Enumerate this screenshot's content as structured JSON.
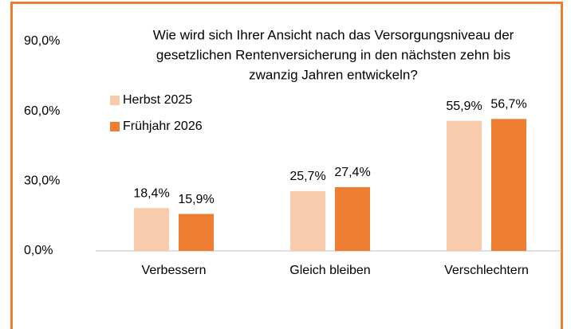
{
  "chart_data": {
    "type": "bar",
    "title": [
      "Wie wird sich Ihrer Ansicht nach das Versorgungsniveau der",
      "gesetzlichen Rentenversicherung in den nächsten zehn bis",
      "zwanzig Jahren entwickeln?"
    ],
    "categories": [
      "Verbessern",
      "Gleich bleiben",
      "Verschlechtern"
    ],
    "series": [
      {
        "name": "Herbst 2025",
        "color": "#f8cbad",
        "values": [
          18.4,
          25.7,
          55.9
        ],
        "value_labels": [
          "18,4%",
          "25,7%",
          "55,9%"
        ]
      },
      {
        "name": "Frühjahr 2026",
        "color": "#ed7d31",
        "values": [
          15.9,
          27.4,
          56.7
        ],
        "value_labels": [
          "15,9%",
          "27,4%",
          "56,7%"
        ]
      }
    ],
    "ylim": [
      0,
      90
    ],
    "yticks": [
      {
        "value": 0,
        "label": "0,0%"
      },
      {
        "value": 30,
        "label": "30,0%"
      },
      {
        "value": 60,
        "label": "60,0%"
      },
      {
        "value": 90,
        "label": "90,0%"
      }
    ],
    "grid": false,
    "legend": "top-left"
  }
}
